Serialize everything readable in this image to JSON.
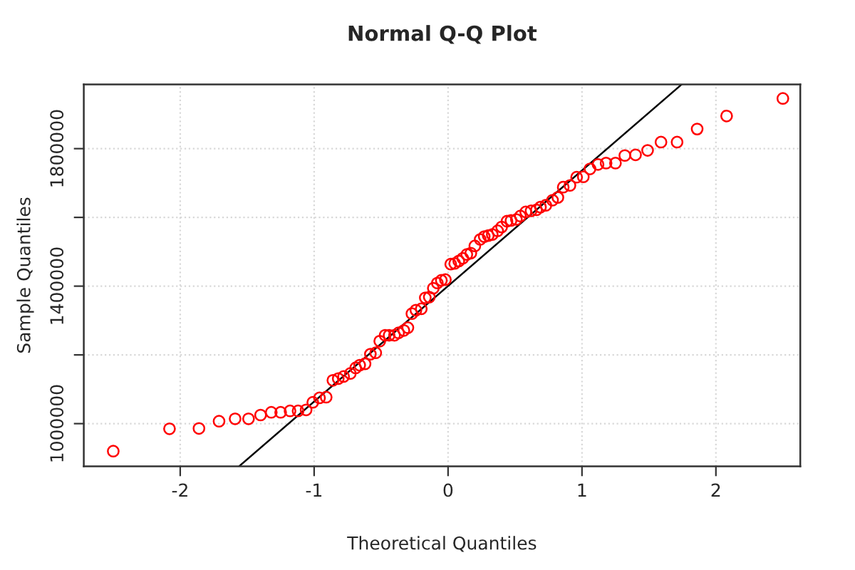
{
  "chart_data": {
    "type": "scatter",
    "title": "Normal Q-Q Plot",
    "xlabel": "Theoretical Quantiles",
    "ylabel": "Sample Quantiles",
    "series": [
      {
        "color": "#ff0000",
        "marker": "circle",
        "x": [
          -2.5,
          -2.08,
          -1.86,
          -1.71,
          -1.59,
          -1.49,
          -1.4,
          -1.32,
          -1.25,
          -1.18,
          -1.12,
          -1.06,
          -1.01,
          -0.96,
          -0.91,
          -0.86,
          -0.82,
          -0.78,
          -0.73,
          -0.69,
          -0.66,
          -0.62,
          -0.58,
          -0.54,
          -0.51,
          -0.47,
          -0.44,
          -0.4,
          -0.37,
          -0.33,
          -0.3,
          -0.27,
          -0.24,
          -0.2,
          -0.17,
          -0.14,
          -0.11,
          -0.08,
          -0.05,
          -0.02,
          0.02,
          0.05,
          0.08,
          0.11,
          0.14,
          0.17,
          0.2,
          0.24,
          0.27,
          0.3,
          0.33,
          0.37,
          0.4,
          0.44,
          0.47,
          0.51,
          0.54,
          0.58,
          0.62,
          0.66,
          0.69,
          0.73,
          0.78,
          0.82,
          0.86,
          0.91,
          0.96,
          1.01,
          1.06,
          1.12,
          1.18,
          1.25,
          1.32,
          1.4,
          1.49,
          1.59,
          1.71,
          1.86,
          2.08,
          2.5
        ],
        "values": [
          920000,
          985000,
          986000,
          1007000,
          1014000,
          1014000,
          1025000,
          1033000,
          1033000,
          1037000,
          1037000,
          1040000,
          1062000,
          1075000,
          1077000,
          1126000,
          1131000,
          1137000,
          1146000,
          1162000,
          1170000,
          1174000,
          1202000,
          1206000,
          1240000,
          1257000,
          1257000,
          1257000,
          1264000,
          1271000,
          1279000,
          1320000,
          1330000,
          1334000,
          1366000,
          1368000,
          1394000,
          1409000,
          1417000,
          1419000,
          1464000,
          1466000,
          1473000,
          1481000,
          1492000,
          1496000,
          1517000,
          1536000,
          1544000,
          1547000,
          1550000,
          1561000,
          1572000,
          1589000,
          1591000,
          1594000,
          1604000,
          1616000,
          1619000,
          1622000,
          1630000,
          1635000,
          1650000,
          1658000,
          1688000,
          1693000,
          1717000,
          1718000,
          1741000,
          1754000,
          1758000,
          1758000,
          1780000,
          1782000,
          1795000,
          1819000,
          1819000,
          1857000,
          1895000,
          1946000
        ]
      },
      {
        "type": "line",
        "color": "#000000",
        "line_style": "solid",
        "x": [
          -1.56,
          1.745
        ],
        "values": [
          876000,
          1987000
        ]
      }
    ],
    "xlim": [
      -2.72,
      2.63
    ],
    "ylim": [
      876000,
      1987000
    ],
    "xticks": [
      -2,
      -1,
      0,
      1,
      2
    ],
    "yticks": [
      1000000,
      {
        "value": 1200000,
        "label": null
      },
      1400000,
      {
        "value": 1600000,
        "label": null
      },
      1800000
    ],
    "grid": true,
    "legend": false
  }
}
